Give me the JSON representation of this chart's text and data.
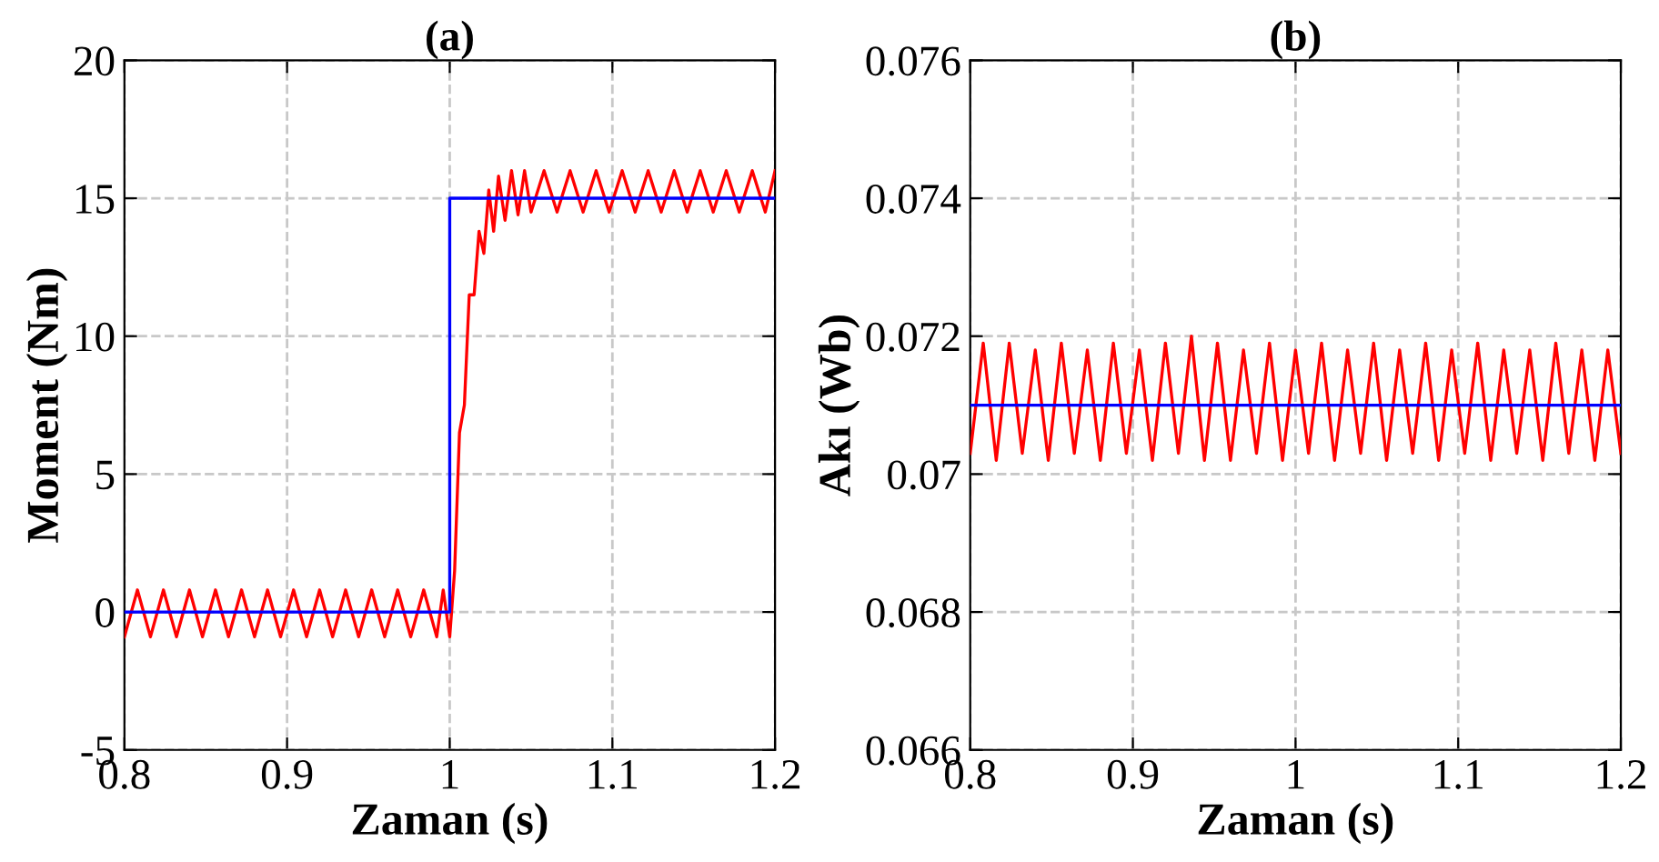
{
  "chart_data": [
    {
      "type": "line",
      "title": "(a)",
      "xlabel": "Zaman (s)",
      "ylabel": "Moment (Nm)",
      "grid": true,
      "xlim": [
        0.8,
        1.2
      ],
      "xticks": [
        0.8,
        0.9,
        {
          "value": 1.0,
          "label": "1"
        },
        1.1,
        1.2
      ],
      "ylim": [
        -5,
        20
      ],
      "yticks": [
        -5,
        0,
        5,
        10,
        15,
        20
      ],
      "series": [
        {
          "color": "#ff0000",
          "x": [
            0.8,
            0.808,
            0.816,
            0.824,
            0.832,
            0.84,
            0.848,
            0.856,
            0.864,
            0.872,
            0.88,
            0.888,
            0.896,
            0.904,
            0.912,
            0.92,
            0.928,
            0.936,
            0.944,
            0.952,
            0.96,
            0.968,
            0.976,
            0.984,
            0.992,
            0.996,
            1.0,
            1.003,
            1.006,
            1.009,
            1.012,
            1.015,
            1.018,
            1.021,
            1.024,
            1.027,
            1.03,
            1.034,
            1.038,
            1.042,
            1.046,
            1.05,
            1.058,
            1.066,
            1.074,
            1.082,
            1.09,
            1.098,
            1.106,
            1.114,
            1.122,
            1.13,
            1.138,
            1.146,
            1.154,
            1.162,
            1.17,
            1.178,
            1.186,
            1.194,
            1.2
          ],
          "values": [
            -0.9,
            0.8,
            -0.9,
            0.8,
            -0.9,
            0.8,
            -0.9,
            0.8,
            -0.9,
            0.8,
            -0.9,
            0.8,
            -0.9,
            0.8,
            -0.9,
            0.8,
            -0.9,
            0.8,
            -0.9,
            0.8,
            -0.9,
            0.8,
            -0.9,
            0.8,
            -0.9,
            0.8,
            -0.9,
            1.5,
            6.5,
            7.5,
            11.5,
            11.5,
            13.8,
            13,
            15.3,
            13.8,
            15.8,
            14.2,
            16,
            14.4,
            16,
            14.5,
            16,
            14.5,
            16,
            14.5,
            16,
            14.5,
            16,
            14.5,
            16,
            14.5,
            16,
            14.5,
            16,
            14.5,
            16,
            14.5,
            16,
            14.5,
            16
          ]
        },
        {
          "color": "#0000ff",
          "x": [
            0.8,
            1.0,
            1.0,
            1.2
          ],
          "values": [
            0,
            0,
            15,
            15
          ]
        }
      ]
    },
    {
      "type": "line",
      "title": "(b)",
      "xlabel": "Zaman (s)",
      "ylabel": "Akı (Wb)",
      "grid": true,
      "xlim": [
        0.8,
        1.2
      ],
      "xticks": [
        0.8,
        0.9,
        {
          "value": 1.0,
          "label": "1"
        },
        1.1,
        1.2
      ],
      "ylim": [
        0.066,
        0.076
      ],
      "yticks": [
        0.066,
        0.068,
        {
          "value": 0.07,
          "label": "0.07"
        },
        0.072,
        0.074,
        0.076
      ],
      "series": [
        {
          "color": "#ff0000",
          "x": [
            0.8,
            0.808,
            0.816,
            0.824,
            0.832,
            0.84,
            0.848,
            0.856,
            0.864,
            0.872,
            0.88,
            0.888,
            0.896,
            0.904,
            0.912,
            0.92,
            0.928,
            0.936,
            0.944,
            0.952,
            0.96,
            0.968,
            0.976,
            0.984,
            0.992,
            1.0,
            1.008,
            1.016,
            1.024,
            1.032,
            1.04,
            1.048,
            1.056,
            1.064,
            1.072,
            1.08,
            1.088,
            1.096,
            1.104,
            1.112,
            1.12,
            1.128,
            1.136,
            1.144,
            1.152,
            1.16,
            1.168,
            1.176,
            1.184,
            1.192,
            1.2
          ],
          "values": [
            0.0703,
            0.0719,
            0.0702,
            0.0719,
            0.0703,
            0.0718,
            0.0702,
            0.0719,
            0.0703,
            0.0718,
            0.0702,
            0.0719,
            0.0703,
            0.0718,
            0.0702,
            0.0719,
            0.0703,
            0.072,
            0.0702,
            0.0719,
            0.0702,
            0.0718,
            0.0703,
            0.0719,
            0.0702,
            0.0718,
            0.0703,
            0.0719,
            0.0702,
            0.0718,
            0.0703,
            0.0719,
            0.0702,
            0.0718,
            0.0703,
            0.0719,
            0.0702,
            0.0718,
            0.0703,
            0.0719,
            0.0702,
            0.0718,
            0.0703,
            0.0718,
            0.0702,
            0.0719,
            0.0703,
            0.0718,
            0.0702,
            0.0718,
            0.0703
          ]
        },
        {
          "color": "#0000ff",
          "x": [
            0.8,
            1.2
          ],
          "values": [
            0.071,
            0.071
          ]
        }
      ]
    }
  ]
}
